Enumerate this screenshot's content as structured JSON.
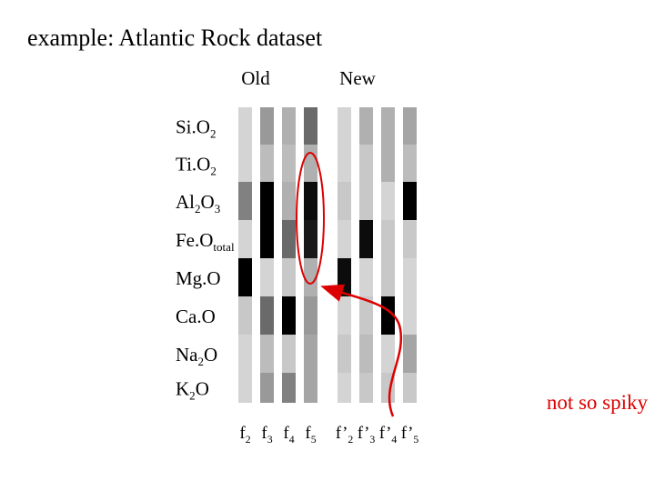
{
  "title": "example: Atlantic Rock dataset",
  "group_labels": [
    "Old",
    "New"
  ],
  "row_labels": [
    [
      "Si.O",
      "2"
    ],
    [
      "Ti.O",
      "2"
    ],
    [
      "Al",
      "2",
      "O",
      "3"
    ],
    [
      "Fe.O",
      "total"
    ],
    [
      "Mg.O"
    ],
    [
      "Ca.O"
    ],
    [
      "Na",
      "2",
      "O"
    ],
    [
      "K",
      "2",
      "O"
    ]
  ],
  "column_labels": [
    [
      "f",
      "2"
    ],
    [
      "f",
      "3"
    ],
    [
      "f",
      "4"
    ],
    [
      "f",
      "5"
    ],
    [
      "f’",
      "2"
    ],
    [
      "f’",
      "3"
    ],
    [
      "f’",
      "4"
    ],
    [
      "f’",
      "5"
    ]
  ],
  "matrix": [
    [
      0.1,
      0.35,
      0.25,
      0.55,
      0.1,
      0.25,
      0.25,
      0.3
    ],
    [
      0.1,
      0.2,
      0.2,
      0.25,
      0.1,
      0.15,
      0.25,
      0.2
    ],
    [
      0.45,
      1.0,
      0.25,
      0.95,
      0.15,
      0.15,
      0.1,
      1.0
    ],
    [
      0.1,
      1.0,
      0.55,
      0.9,
      0.1,
      0.95,
      0.15,
      0.15
    ],
    [
      1.0,
      0.1,
      0.15,
      0.25,
      0.95,
      0.1,
      0.15,
      0.1
    ],
    [
      0.15,
      0.55,
      1.0,
      0.35,
      0.1,
      0.15,
      1.0,
      0.1
    ],
    [
      0.1,
      0.2,
      0.15,
      0.3,
      0.15,
      0.2,
      0.1,
      0.3
    ],
    [
      0.1,
      0.35,
      0.45,
      0.3,
      0.1,
      0.15,
      0.15,
      0.15
    ]
  ],
  "annotation": "not so spiky"
}
